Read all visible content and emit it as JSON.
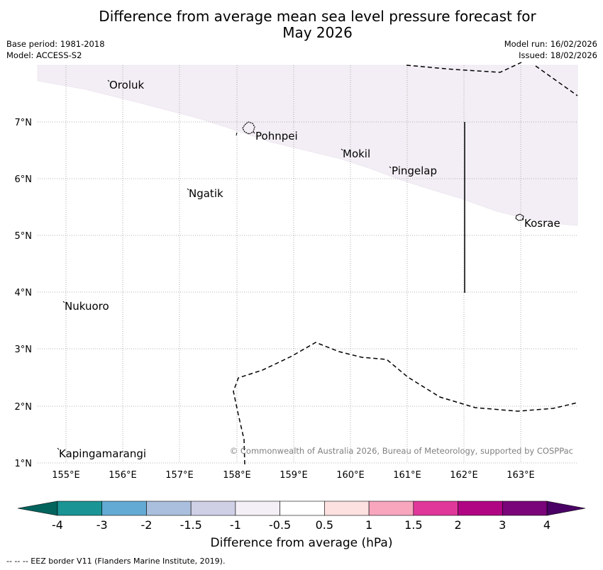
{
  "title": {
    "line1": "Difference from average mean sea level pressure forecast for",
    "line2": "May 2026"
  },
  "meta": {
    "base_period": "Base period: 1981-2018",
    "model": "Model: ACCESS-S2",
    "model_run": "Model run: 16/02/2026",
    "issued": "Issued: 18/02/2026"
  },
  "map": {
    "lat_labels": [
      "7°N",
      "6°N",
      "5°N",
      "4°N",
      "3°N",
      "2°N",
      "1°N"
    ],
    "lon_labels": [
      "155°E",
      "156°E",
      "157°E",
      "158°E",
      "159°E",
      "160°E",
      "161°E",
      "162°E",
      "163°E"
    ],
    "places": [
      {
        "name": "Oroluk"
      },
      {
        "name": "Pohnpei"
      },
      {
        "name": "Mokil"
      },
      {
        "name": "Pingelap"
      },
      {
        "name": "Ngatik"
      },
      {
        "name": "Kosrae"
      },
      {
        "name": "Nukuoro"
      },
      {
        "name": "Kapingamarangi"
      }
    ],
    "shaded_anomaly_class": "-1 to -0.5 hPa",
    "copyright": "© Commonwealth of Australia 2026, Bureau of Meteorology, supported by COSPPac"
  },
  "colorbar": {
    "title": "Difference from average (hPa)",
    "ticks": [
      "-4",
      "-3",
      "-2",
      "-1.5",
      "-1",
      "-0.5",
      "0.5",
      "1",
      "1.5",
      "2",
      "3",
      "4"
    ],
    "colors": [
      "#1a9495",
      "#63aad4",
      "#a9bfdd",
      "#cfd0e6",
      "#f4eff6",
      "#ffffff",
      "#fde0e0",
      "#f7a6be",
      "#e0389a",
      "#b00683",
      "#7a0479"
    ],
    "under_color": "#03645e",
    "over_color": "#4a0265",
    "fill_color": "#f3eef5"
  },
  "footer": "--  --  -- EEZ border V11 (Flanders Marine Institute, 2019)."
}
